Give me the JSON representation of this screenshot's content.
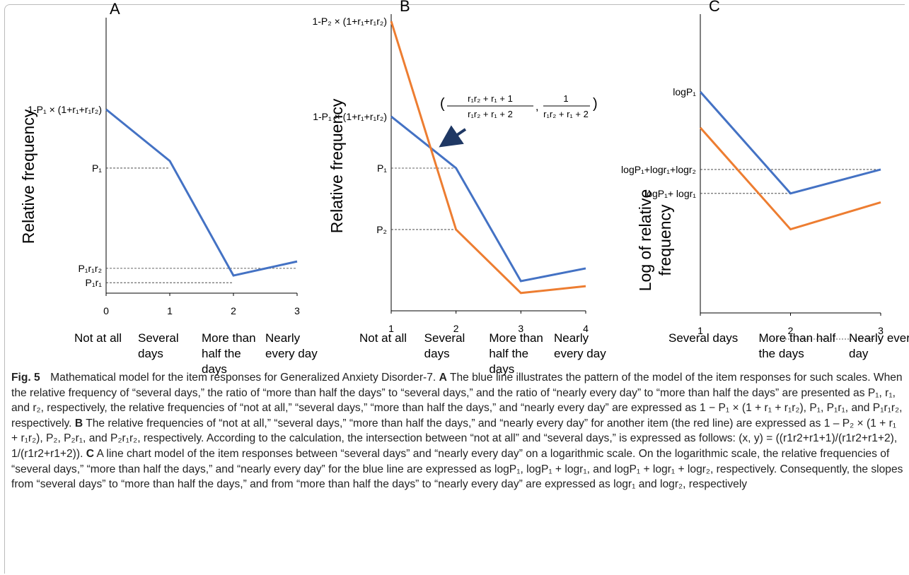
{
  "chart_data": [
    {
      "type": "line",
      "title": "A",
      "ylabel": "Relative frequency",
      "x": [
        0,
        1,
        2,
        3
      ],
      "xlim": [
        0,
        3
      ],
      "xticks": [
        0,
        1,
        2,
        3
      ],
      "ylim": [
        0,
        1
      ],
      "categories": [
        "Not at all",
        "Several days",
        "More than half the days",
        "Nearly every day"
      ],
      "series": [
        {
          "color": "#4472c4",
          "values": [
            0.667,
            0.48,
            0.064,
            0.115
          ]
        }
      ],
      "y_labels": [
        {
          "label": "1-P₁ × (1+r₁+r₁r₂)",
          "value": 0.667
        },
        {
          "label": "P₁",
          "value": 0.454,
          "dashed_to": 1
        },
        {
          "label": "P₁r₁r₂",
          "value": 0.09,
          "dashed_to": 3
        },
        {
          "label": "P₁r₁",
          "value": 0.038,
          "dashed_to": 2
        }
      ]
    },
    {
      "type": "line",
      "title": "B",
      "ylabel": "Relative frequency",
      "x": [
        1,
        2,
        3,
        4
      ],
      "xlim": [
        1,
        4
      ],
      "xticks": [
        1,
        2,
        3,
        4
      ],
      "ylim": [
        0,
        1
      ],
      "categories": [
        "Not at all",
        "Several days",
        "More than half the days",
        "Nearly every day"
      ],
      "series": [
        {
          "color": "#4472c4",
          "values": [
            0.655,
            0.481,
            0.1,
            0.143
          ]
        },
        {
          "color": "#ed7d31",
          "values": [
            0.976,
            0.274,
            0.06,
            0.083
          ]
        }
      ],
      "y_labels": [
        {
          "label": "1-P₂ × (1+r₁+r₁r₂)",
          "value": 0.976
        },
        {
          "label": "1-P₁ × (1+r₁+r₁r₂)",
          "value": 0.655
        },
        {
          "label": "P₁",
          "value": 0.481,
          "dashed_to": 2
        },
        {
          "label": "P₂",
          "value": 0.274,
          "dashed_to": 2
        }
      ],
      "annotation": {
        "x_numerator": "r₁r₂ + r₁ + 1",
        "x_denominator": "r₁r₂ + r₁ + 2",
        "y_numerator": "1",
        "y_denominator": "r₁r₂ + r₁ + 2"
      }
    },
    {
      "type": "line",
      "title": "C",
      "ylabel": "Log of relative frequency",
      "x": [
        1,
        2,
        3
      ],
      "xlim": [
        1,
        3
      ],
      "xticks": [
        1,
        2,
        3
      ],
      "ylim": [
        0,
        1
      ],
      "categories": [
        "Several days",
        "More than half the days",
        "Nearly every day"
      ],
      "series": [
        {
          "color": "#4472c4",
          "values": [
            0.74,
            0.4,
            0.48
          ]
        },
        {
          "color": "#ed7d31",
          "values": [
            0.62,
            0.28,
            0.37
          ]
        }
      ],
      "y_labels": [
        {
          "label": "logP₁",
          "value": 0.74
        },
        {
          "label": "logP₁+logr₁+logr₂",
          "value": 0.48,
          "dashed_to": 3
        },
        {
          "label": "logP₁+ logr₁",
          "value": 0.4,
          "dashed_to": 2
        }
      ]
    }
  ],
  "caption": {
    "label": "Fig. 5",
    "text": "Mathematical model for the item responses for Generalized Anxiety Disorder-7.",
    "parts": [
      {
        "letter": "A",
        "text": "The blue line illustrates the pattern of the model of the item responses for such scales. When the relative frequency of “several days,” the ratio of “more than half the days” to “several days,” and the ratio of “nearly every day” to “more than half the days” are presented as P₁, r₁, and r₂, respectively, the relative frequencies of “not at all,” “several days,” “more than half the days,” and “nearly every day” are expressed as 1 − P₁ × (1 + r₁ + r₁r₂), P₁, P₁r₁, and P₁r₁r₂, respectively."
      },
      {
        "letter": "B",
        "text": "The relative frequencies of “not at all,” “several days,” “more than half the days,” and “nearly every day” for another item (the red line) are expressed as 1 – P₂ × (1 + r₁ + r₁r₂), P₂, P₂r₁, and P₂r₁r₂, respectively. According to the calculation, the intersection between “not at all” and “several days,” is expressed as follows: (x, y) = ((r1r2+r1+1)/(r1r2+r1+2), 1/(r1r2+r1+2))."
      },
      {
        "letter": "C",
        "text": "A line chart model of the item responses between “several days” and “nearly every day” on a logarithmic scale. On the logarithmic scale, the relative frequencies of “several days,” “more than half the days,” and “nearly every day” for the blue line are expressed as logP₁, logP₁ + logr₁, and logP₁ + logr₁ + logr₂, respectively. Consequently, the slopes from “several days” to “more than half the days,” and from “more than half the days” to “nearly every day” are expressed as logr₁ and logr₂, respectively"
      }
    ]
  }
}
